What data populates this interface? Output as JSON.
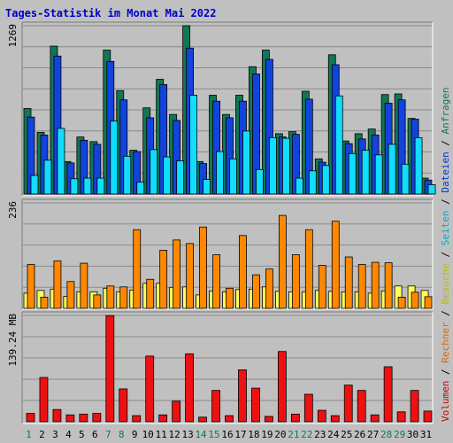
{
  "chart_data": {
    "type": "bar",
    "title": "Tages-Statistik im Monat Mai 2022",
    "days": [
      "1",
      "2",
      "3",
      "4",
      "5",
      "6",
      "7",
      "8",
      "9",
      "10",
      "11",
      "12",
      "13",
      "14",
      "15",
      "16",
      "17",
      "18",
      "19",
      "20",
      "21",
      "22",
      "23",
      "24",
      "25",
      "26",
      "27",
      "28",
      "29",
      "30",
      "31"
    ],
    "weekend_days": [
      "1",
      "7",
      "8",
      "14",
      "15",
      "21",
      "22",
      "28",
      "29"
    ],
    "panels": {
      "top": {
        "ytick": "1269",
        "ymax": 1269,
        "series": [
          {
            "name": "Anfragen",
            "color": "#117755",
            "values": [
              645,
              465,
              1115,
              245,
              430,
              395,
              1085,
              780,
              330,
              650,
              865,
              600,
              1269,
              245,
              745,
              600,
              745,
              960,
              1085,
              455,
              470,
              775,
              265,
              1050,
              400,
              455,
              490,
              750,
              755,
              570,
              120
            ]
          },
          {
            "name": "Dateien",
            "color": "#1144dd",
            "values": [
              580,
              445,
              1040,
              235,
              405,
              375,
              1000,
              710,
              320,
              575,
              825,
              555,
              1100,
              230,
              700,
              575,
              700,
              905,
              1015,
              430,
              450,
              715,
              240,
              975,
              380,
              415,
              445,
              685,
              710,
              565,
              105
            ]
          },
          {
            "name": "Seiten",
            "color": "#11ddff",
            "values": [
              140,
              255,
              495,
              115,
              120,
              120,
              550,
              285,
              90,
              335,
              280,
              250,
              745,
              110,
              320,
              265,
              475,
              185,
              425,
              420,
              120,
              175,
              215,
              740,
              305,
              330,
              295,
              375,
              225,
              425,
              70
            ]
          }
        ]
      },
      "middle": {
        "ytick": "236",
        "ymax": 236,
        "series": [
          {
            "name": "Besuche",
            "color": "#ffff55",
            "values": [
              34,
              40,
              43,
              27,
              37,
              37,
              45,
              37,
              41,
              56,
              56,
              47,
              48,
              30,
              39,
              37,
              42,
              43,
              48,
              38,
              37,
              37,
              40,
              38,
              37,
              37,
              34,
              39,
              50,
              50,
              40
            ]
          },
          {
            "name": "Rechner",
            "color": "#ff8800",
            "values": [
              98,
              25,
              106,
              60,
              101,
              30,
              50,
              48,
              176,
              65,
              130,
              153,
              145,
              182,
              120,
              45,
              163,
              75,
              88,
              208,
              120,
              176,
              96,
              195,
              115,
              98,
              103,
              102,
              25,
              36,
              26
            ]
          }
        ]
      },
      "bottom": {
        "ytick": "139.24 MB",
        "ymax": 139.24,
        "series": [
          {
            "name": "Volumen",
            "color": "#ee1111",
            "values": [
              11,
              58,
              16,
              9,
              10,
              11,
              139,
              43,
              8,
              86,
              9,
              27,
              89,
              6,
              41,
              8,
              68,
              44,
              7,
              92,
              10,
              36,
              15,
              8,
              48,
              41,
              9,
              72,
              13,
              41,
              14
            ]
          }
        ]
      }
    },
    "side_legend": [
      {
        "name": "Volumen",
        "color": "#cc0000"
      },
      {
        "sep": " / "
      },
      {
        "name": "Rechner",
        "color": "#dd6600"
      },
      {
        "sep": " / "
      },
      {
        "name": "Besuche",
        "color": "#bbbb00"
      },
      {
        "sep": " / "
      },
      {
        "name": "Seiten",
        "color": "#00aacc"
      },
      {
        "sep": " / "
      },
      {
        "name": "Dateien",
        "color": "#0033cc"
      },
      {
        "sep": " / "
      },
      {
        "name": "Anfragen",
        "color": "#117755"
      }
    ]
  }
}
